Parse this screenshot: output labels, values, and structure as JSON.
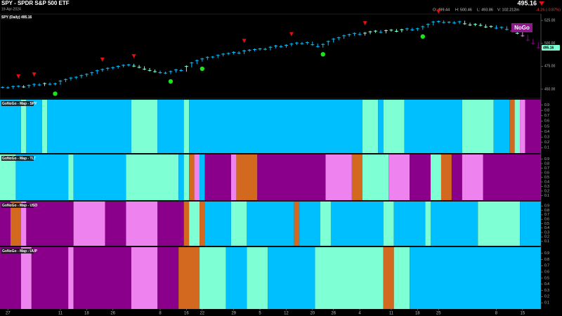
{
  "header": {
    "title": "SPY - SPDR S&P 500 ETF",
    "date": "19-Apr-2024",
    "last": "495.16",
    "open": "O: 499.44",
    "high": "H: 500.46",
    "low": "L: 493.86",
    "volume": "V: 102.212m",
    "change": "-4.26 (-0.87%)"
  },
  "chart_data": [
    {
      "type": "price",
      "title": "SPY (Daily) 495.16",
      "state_label": "NoGo",
      "xlim": [
        0,
        103
      ],
      "ylim": [
        440,
        532
      ],
      "yticks": [
        {
          "value": 450,
          "label": "450.00"
        },
        {
          "value": 475,
          "label": "475.00"
        },
        {
          "value": 500,
          "label": "500.00"
        },
        {
          "value": 525,
          "label": "525.00"
        }
      ],
      "values": [
        452,
        451.5,
        452.8,
        453.1,
        452.4,
        454.0,
        455.2,
        454.6,
        456.1,
        455.3,
        455.8,
        458.9,
        460.5,
        462.1,
        463.0,
        464.7,
        466.2,
        467.9,
        470.1,
        471.4,
        472.8,
        473.5,
        474.9,
        476.0,
        476.5,
        475.2,
        473.8,
        471.9,
        470.4,
        469.1,
        468.0,
        467.5,
        469.2,
        471.0,
        470.3,
        474.8,
        478.6,
        481.2,
        483.0,
        484.7,
        485.1,
        486.9,
        488.3,
        489.0,
        490.2,
        489.4,
        491.8,
        492.5,
        493.3,
        494.0,
        493.6,
        495.8,
        497.1,
        496.3,
        497.9,
        499.2,
        500.4,
        499.7,
        500.9,
        498.6,
        496.5,
        498.8,
        502.0,
        504.6,
        506.1,
        508.3,
        509.5,
        510.8,
        509.7,
        511.2,
        512.6,
        513.4,
        512.1,
        513.9,
        514.5,
        513.2,
        514.8,
        515.9,
        514.7,
        516.0,
        518.2,
        520.7,
        523.4,
        523.9,
        522.8,
        523.1,
        522.2,
        523.6,
        521.4,
        520.0,
        520.8,
        519.6,
        517.9,
        518.5,
        516.7,
        517.4,
        515.2,
        513.6,
        511.0,
        508.2,
        503.5,
        499.9,
        495.16
      ],
      "sell_signals": [
        3,
        6,
        19,
        25,
        46,
        55,
        69,
        83
      ],
      "sell_color": "#e01010",
      "buy_signals": [
        10,
        32,
        38,
        61,
        80
      ],
      "buy_color": "#19e619",
      "state_color": "#8b1a8b",
      "last_color": "#7fffd4"
    },
    {
      "type": "heatmap",
      "title": "GoNoGo - Map - SPY",
      "xlim": [
        0,
        103
      ],
      "ylim": [
        0,
        1
      ],
      "yticks": [
        0.1,
        0.2,
        0.3,
        0.4,
        0.5,
        0.6,
        0.7,
        0.8,
        0.9
      ],
      "breaks": [
        0,
        4,
        5,
        8,
        9,
        25,
        30,
        35,
        36,
        69,
        72,
        73,
        77,
        88,
        94,
        97,
        98,
        99,
        100,
        103
      ],
      "colors": [
        "#00bfff",
        "#7fffd4",
        "#00bfff",
        "#7fffd4",
        "#00bfff",
        "#7fffd4",
        "#00bfff",
        "#7fffd4",
        "#00bfff",
        "#7fffd4",
        "#00bfff",
        "#7fffd4",
        "#00bfff",
        "#7fffd4",
        "#00bfff",
        "#d2691e",
        "#7fffd4",
        "#ee82ee",
        "#8b008b"
      ]
    },
    {
      "type": "heatmap",
      "title": "GoNoGo - Map - TLT",
      "xlim": [
        0,
        103
      ],
      "ylim": [
        0,
        1
      ],
      "yticks": [
        0.1,
        0.2,
        0.3,
        0.4,
        0.5,
        0.6,
        0.7,
        0.8,
        0.9
      ],
      "breaks": [
        0,
        3,
        13,
        14,
        24,
        34,
        35,
        36,
        37,
        38,
        39,
        44,
        45,
        49,
        62,
        67,
        69,
        74,
        78,
        82,
        84,
        86,
        88,
        92,
        103
      ],
      "colors": [
        "#7fffd4",
        "#00bfff",
        "#7fffd4",
        "#00bfff",
        "#7fffd4",
        "#00bfff",
        "#7fffd4",
        "#d2691e",
        "#ee82ee",
        "#00bfff",
        "#8b008b",
        "#ee82ee",
        "#d2691e",
        "#8b008b",
        "#ee82ee",
        "#d2691e",
        "#7fffd4",
        "#ee82ee",
        "#8b008b",
        "#7fffd4",
        "#d2691e",
        "#8b008b",
        "#ee82ee",
        "#8b008b"
      ]
    },
    {
      "type": "heatmap",
      "title": "GoNoGo - Map - USO",
      "xlim": [
        0,
        103
      ],
      "ylim": [
        0,
        1
      ],
      "yticks": [
        0.1,
        0.2,
        0.3,
        0.4,
        0.5,
        0.6,
        0.7,
        0.8,
        0.9
      ],
      "breaks": [
        0,
        2,
        4,
        5,
        14,
        20,
        24,
        30,
        35,
        36,
        38,
        39,
        44,
        47,
        56,
        57,
        61,
        63,
        73,
        75,
        81,
        82,
        91,
        99,
        103
      ],
      "colors": [
        "#8b008b",
        "#d2691e",
        "#ee82ee",
        "#8b008b",
        "#ee82ee",
        "#8b008b",
        "#ee82ee",
        "#8b008b",
        "#d2691e",
        "#7fffd4",
        "#d2691e",
        "#00bfff",
        "#7fffd4",
        "#00bfff",
        "#d2691e",
        "#00bfff",
        "#7fffd4",
        "#00bfff",
        "#7fffd4",
        "#00bfff",
        "#7fffd4",
        "#00bfff",
        "#7fffd4",
        "#00bfff"
      ]
    },
    {
      "type": "heatmap",
      "title": "GoNoGo - Map - UUP",
      "xlim": [
        0,
        103
      ],
      "ylim": [
        0,
        1
      ],
      "yticks": [
        0.1,
        0.2,
        0.3,
        0.4,
        0.5,
        0.6,
        0.7,
        0.8,
        0.9
      ],
      "breaks": [
        0,
        4,
        6,
        13,
        14,
        25,
        30,
        34,
        38,
        43,
        47,
        51,
        60,
        73,
        75,
        78,
        103
      ],
      "colors": [
        "#8b008b",
        "#ee82ee",
        "#8b008b",
        "#ee82ee",
        "#8b008b",
        "#ee82ee",
        "#8b008b",
        "#d2691e",
        "#7fffd4",
        "#00bfff",
        "#7fffd4",
        "#00bfff",
        "#7fffd4",
        "#d2691e",
        "#7fffd4",
        "#00bfff"
      ],
      "xticks": [
        {
          "value": 1,
          "label": "27"
        },
        {
          "value": 11,
          "label": "11"
        },
        {
          "value": 16,
          "label": "18"
        },
        {
          "value": 21,
          "label": "26"
        },
        {
          "value": 30,
          "label": "8"
        },
        {
          "value": 35,
          "label": "16"
        },
        {
          "value": 38,
          "label": "22"
        },
        {
          "value": 44,
          "label": "29"
        },
        {
          "value": 49,
          "label": "5"
        },
        {
          "value": 54,
          "label": "12"
        },
        {
          "value": 59,
          "label": "20"
        },
        {
          "value": 63,
          "label": "26"
        },
        {
          "value": 68,
          "label": "4"
        },
        {
          "value": 74,
          "label": "11"
        },
        {
          "value": 79,
          "label": "18"
        },
        {
          "value": 83,
          "label": "25"
        },
        {
          "value": 94,
          "label": "8"
        },
        {
          "value": 99,
          "label": "15"
        }
      ]
    }
  ]
}
